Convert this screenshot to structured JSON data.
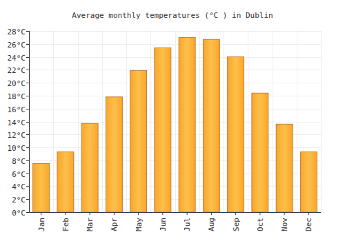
{
  "chart_data": {
    "type": "bar",
    "title": "Average monthly temperatures (°C ) in Dublin",
    "categories": [
      "Jan",
      "Feb",
      "Mar",
      "Apr",
      "May",
      "Jun",
      "Jul",
      "Aug",
      "Sep",
      "Oct",
      "Nov",
      "Dec"
    ],
    "values": [
      7.5,
      9.3,
      13.7,
      17.8,
      21.9,
      25.4,
      27.0,
      26.7,
      24.0,
      18.4,
      13.6,
      9.3
    ],
    "color": "#fba52a",
    "ylim": [
      0,
      28
    ],
    "yticks": [
      {
        "value": 0,
        "label": "0°C"
      },
      {
        "value": 2,
        "label": "2°C"
      },
      {
        "value": 4,
        "label": "4°C"
      },
      {
        "value": 6,
        "label": "6°C"
      },
      {
        "value": 8,
        "label": "8°C"
      },
      {
        "value": 10,
        "label": "10°C"
      },
      {
        "value": 12,
        "label": "12°C"
      },
      {
        "value": 14,
        "label": "14°C"
      },
      {
        "value": 16,
        "label": "16°C"
      },
      {
        "value": 18,
        "label": "18°C"
      },
      {
        "value": 20,
        "label": "20°C"
      },
      {
        "value": 22,
        "label": "22°C"
      },
      {
        "value": 24,
        "label": "24°C"
      },
      {
        "value": 26,
        "label": "26°C"
      },
      {
        "value": 28,
        "label": "28°C"
      }
    ],
    "grid": true
  }
}
